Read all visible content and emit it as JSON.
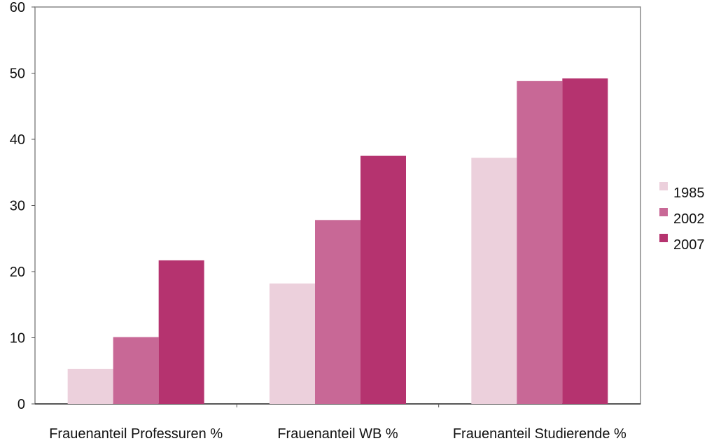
{
  "chart_data": {
    "type": "bar",
    "title": "",
    "xlabel": "",
    "ylabel": "",
    "categories": [
      "Frauenanteil Professuren %",
      "Frauenanteil WB %",
      "Frauenanteil Studierende %"
    ],
    "series": [
      {
        "name": "1985",
        "values": [
          5.3,
          18.2,
          37.2
        ],
        "color": "#ecd0dc"
      },
      {
        "name": "2002",
        "values": [
          10.1,
          27.8,
          48.8
        ],
        "color": "#c86896"
      },
      {
        "name": "2007",
        "values": [
          21.7,
          37.5,
          49.2
        ],
        "color": "#b5336f"
      }
    ],
    "ylim": [
      0,
      60
    ],
    "yticks": [
      "0",
      "10",
      "20",
      "30",
      "40",
      "50",
      "60"
    ],
    "grid": false,
    "legend_position": "right"
  }
}
